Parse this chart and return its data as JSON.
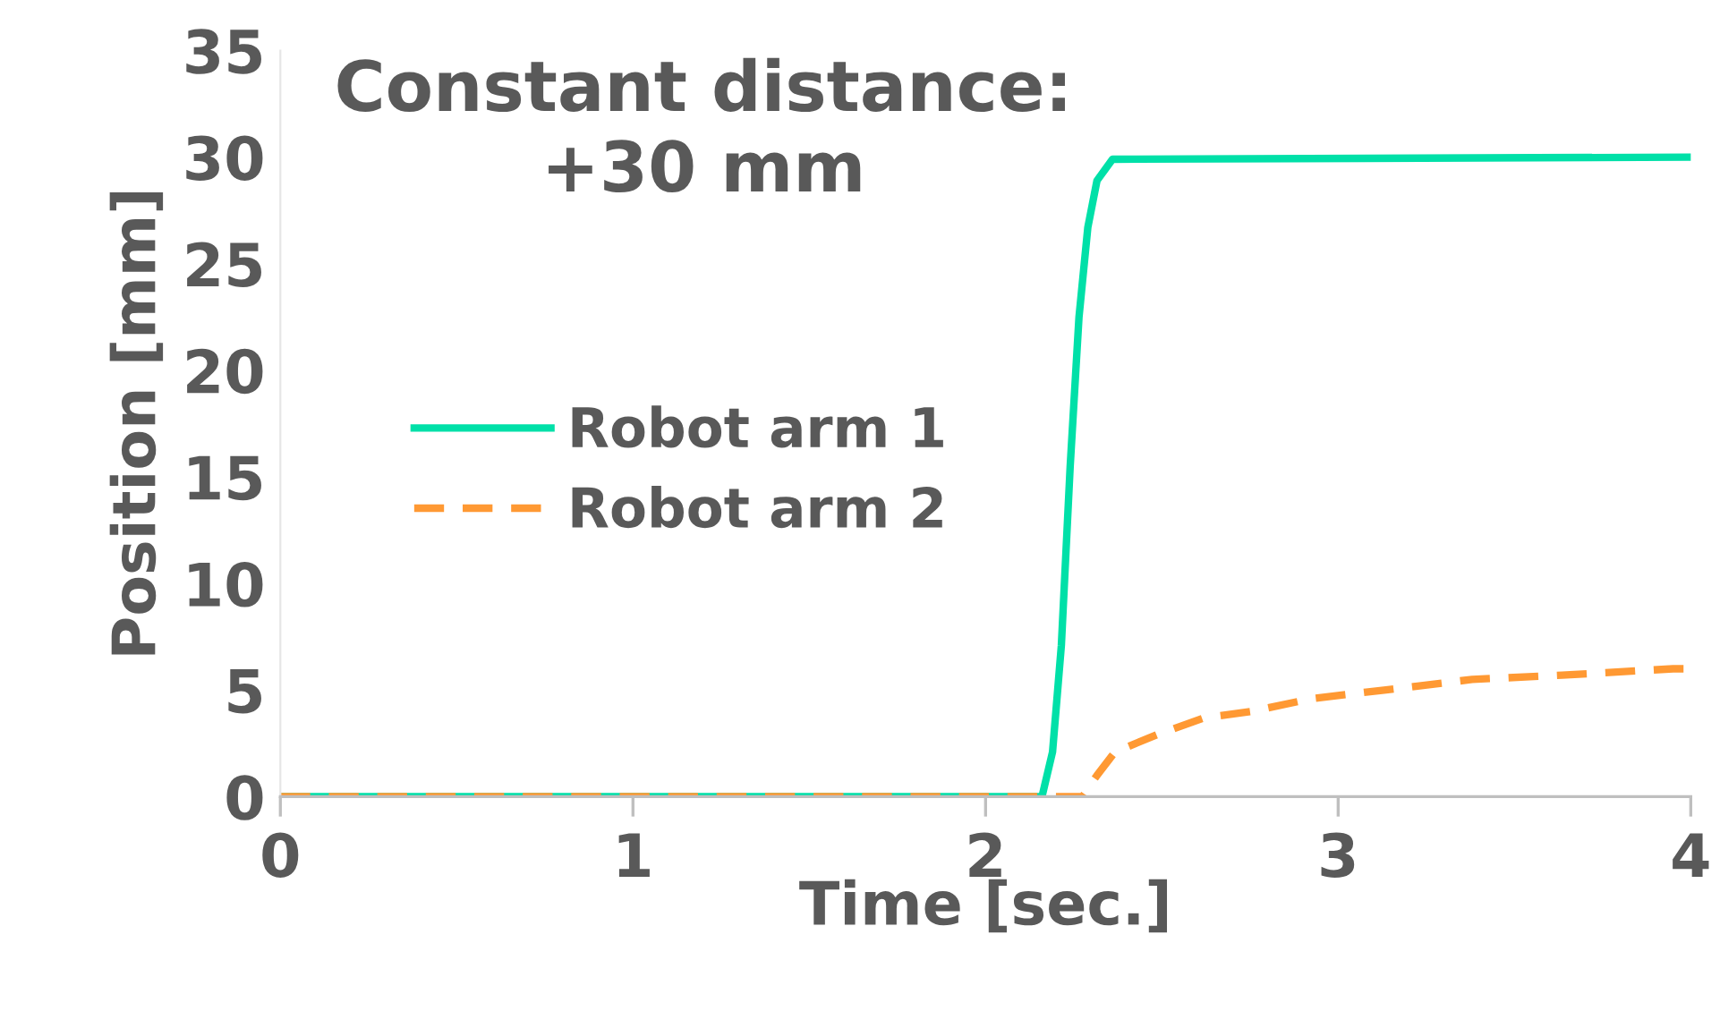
{
  "chart_data": {
    "type": "line",
    "title": "Constant distance:\n+30 mm",
    "xlabel": "Time [sec.]",
    "ylabel": "Position [mm]",
    "xlim": [
      0,
      4
    ],
    "xticks": [
      0,
      1,
      2,
      3,
      4
    ],
    "ylim": [
      0,
      35
    ],
    "yticks": [
      0,
      5,
      10,
      15,
      20,
      25,
      30,
      35
    ],
    "grid": false,
    "legend": "center left",
    "series": [
      {
        "name": "Robot arm 1",
        "color": "#00e0a8",
        "line_style": "solid",
        "x": [
          0,
          2.16,
          2.19,
          2.215,
          2.24,
          2.265,
          2.29,
          2.316,
          2.36,
          4
        ],
        "values": [
          0,
          0,
          2.1,
          7.1,
          15.5,
          22.5,
          26.7,
          28.9,
          29.9,
          30
        ]
      },
      {
        "name": "Robot arm 2",
        "color": "#ff9933",
        "line_style": "dashed",
        "x": [
          0,
          2.275,
          2.316,
          2.367,
          2.485,
          2.62,
          2.755,
          2.925,
          3.13,
          3.38,
          3.635,
          3.95,
          4
        ],
        "values": [
          0,
          0,
          1.0,
          2.1,
          2.9,
          3.7,
          4.0,
          4.6,
          5.0,
          5.5,
          5.7,
          6.0,
          6.0
        ]
      }
    ]
  }
}
